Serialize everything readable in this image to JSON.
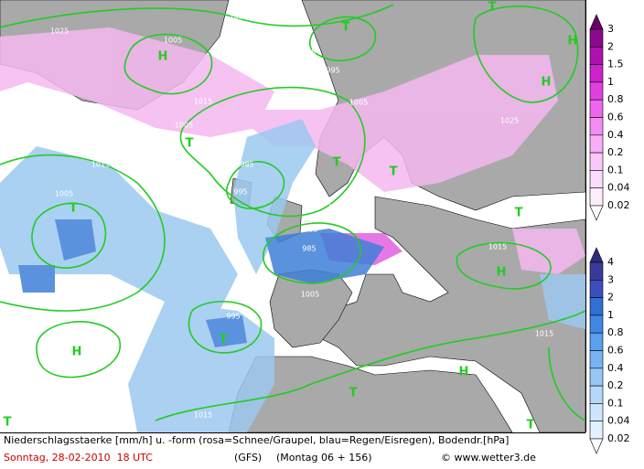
{
  "caption": {
    "description": "Niederschlagsstaerke [mm/h] u. -form (rosa=Schnee/Graupel, blau=Regen/Eisregen), Bodendr.[hPa]",
    "date": "Sonntag, 28-02-2010  18 UTC",
    "model": "(GFS)",
    "forecast": "(Montag 06 + 156)",
    "credit": "© www.wetter3.de"
  },
  "legend_snow": {
    "levels": [
      3,
      2,
      1.5,
      1,
      0.8,
      0.6,
      0.4,
      0.2,
      0.1,
      0.04,
      0.02
    ]
  },
  "legend_rain": {
    "levels": [
      4,
      3,
      2,
      1,
      0.8,
      0.6,
      0.4,
      0.2,
      0.1,
      0.04,
      0.02
    ]
  },
  "map": {
    "pressure_labels": [
      "1025",
      "1025",
      "1005",
      "1015",
      "995",
      "1015",
      "1005",
      "995",
      "1005",
      "1015",
      "985",
      "995",
      "1005",
      "1015",
      "1025",
      "995",
      "1005",
      "1015",
      "985",
      "1015",
      "1005",
      "995",
      "1015",
      "1015"
    ],
    "centers": [
      "T",
      "H",
      "H",
      "H",
      "T",
      "T",
      "T",
      "T",
      "T",
      "T",
      "H",
      "T",
      "H",
      "T",
      "H",
      "T",
      "T"
    ]
  }
}
